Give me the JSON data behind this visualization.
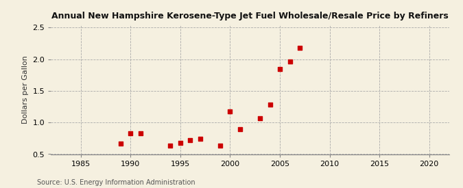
{
  "title": "Annual New Hampshire Kerosene-Type Jet Fuel Wholesale/Resale Price by Refiners",
  "ylabel": "Dollars per Gallon",
  "source": "Source: U.S. Energy Information Administration",
  "background_color": "#f5f0e0",
  "marker_color": "#cc0000",
  "xlim": [
    1982,
    2022
  ],
  "ylim": [
    0.5,
    2.55
  ],
  "xticks": [
    1985,
    1990,
    1995,
    2000,
    2005,
    2010,
    2015,
    2020
  ],
  "yticks": [
    0.5,
    1.0,
    1.5,
    2.0,
    2.5
  ],
  "years": [
    1989,
    1990,
    1991,
    1994,
    1995,
    1996,
    1997,
    1999,
    2000,
    2001,
    2003,
    2004,
    2005,
    2006,
    2007
  ],
  "values": [
    0.67,
    0.83,
    0.83,
    0.63,
    0.68,
    0.72,
    0.74,
    0.64,
    1.17,
    0.89,
    1.07,
    1.28,
    1.85,
    1.96,
    2.18
  ]
}
